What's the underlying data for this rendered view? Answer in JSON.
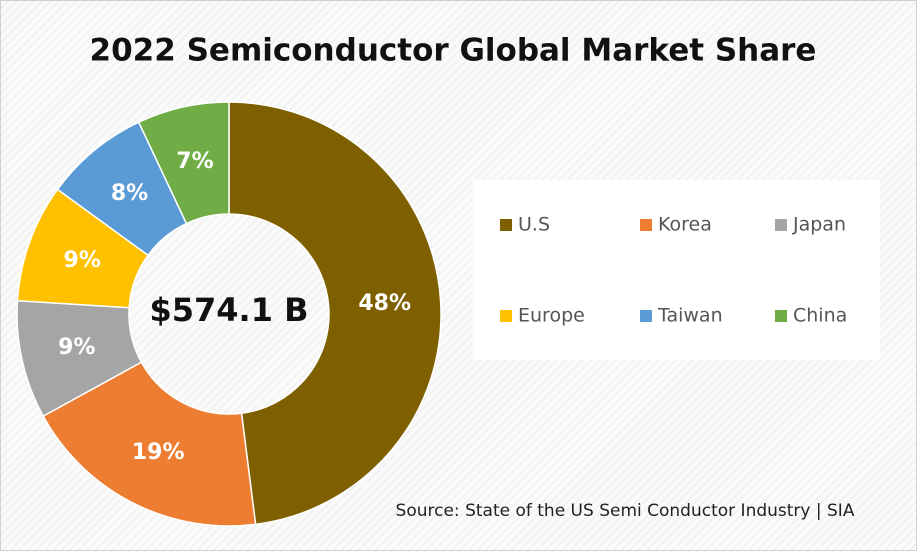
{
  "chart_data": {
    "type": "donut",
    "title": "2022 Semiconductor Global Market Share",
    "center_label": "$574.1 B",
    "categories": [
      "U.S",
      "Korea",
      "Japan",
      "Europe",
      "Taiwan",
      "China"
    ],
    "values": [
      48,
      19,
      9,
      9,
      8,
      7
    ],
    "value_labels": [
      "48%",
      "19%",
      "9%",
      "9%",
      "8%",
      "7%"
    ],
    "colors": [
      "#7f6000",
      "#ed7d31",
      "#a5a5a5",
      "#ffc000",
      "#5b9bd5",
      "#70ad47"
    ],
    "legend": "right",
    "source": "Source: State of the US Semi Conductor Industry | SIA"
  }
}
